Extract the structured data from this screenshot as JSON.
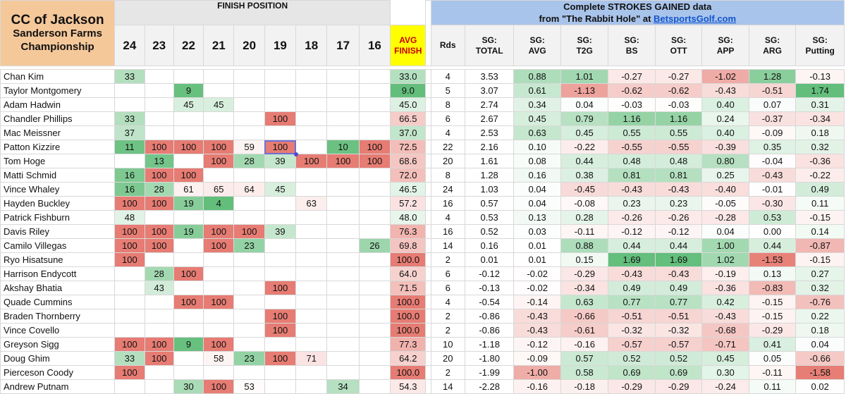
{
  "header": {
    "title_line1": "CC of Jackson",
    "title_line2": "Sanderson Farms",
    "title_line3": "Championship",
    "finish_label": "FINISH POSITION",
    "positions": [
      "24",
      "23",
      "22",
      "21",
      "20",
      "19",
      "18",
      "17",
      "16"
    ],
    "avg_line1": "AVG",
    "avg_line2": "FINISH",
    "sg_line1": "Complete STROKES GAINED data",
    "sg_line2_prefix": "from \"The Rabbit Hole\" at ",
    "sg_link": "BetsportsGolf.com",
    "stat_columns": [
      {
        "l1": "Rds",
        "l2": ""
      },
      {
        "l1": "SG:",
        "l2": "TOTAL"
      },
      {
        "l1": "SG:",
        "l2": "AVG"
      },
      {
        "l1": "SG:",
        "l2": "T2G"
      },
      {
        "l1": "SG:",
        "l2": "BS"
      },
      {
        "l1": "SG:",
        "l2": "OTT"
      },
      {
        "l1": "SG:",
        "l2": "APP"
      },
      {
        "l1": "SG:",
        "l2": "ARG"
      },
      {
        "l1": "SG:",
        "l2": "Putting"
      }
    ]
  },
  "colors": {
    "finish_green_strong": "#63be7b",
    "finish_green_light": "#d7efde",
    "finish_red_strong": "#e67c73",
    "finish_red_light": "#f8dcdc",
    "title_bg": "#f5c89a",
    "avg_header_bg": "#ffff00",
    "sg_header_bg": "#a9c4eb"
  },
  "rows": [
    {
      "name": "Chan Kim",
      "fin": [
        "33",
        "",
        "",
        "",
        "",
        "",
        "",
        "",
        ""
      ],
      "avg": "33.0",
      "rds": "4",
      "total": "3.53",
      "sg": [
        "0.88",
        "1.01",
        "-0.27",
        "-0.27",
        "-1.02",
        "1.28",
        "-0.13"
      ]
    },
    {
      "name": "Taylor Montgomery",
      "fin": [
        "",
        "",
        "9",
        "",
        "",
        "",
        "",
        "",
        ""
      ],
      "avg": "9.0",
      "rds": "5",
      "total": "3.07",
      "sg": [
        "0.61",
        "-1.13",
        "-0.62",
        "-0.62",
        "-0.43",
        "-0.51",
        "1.74"
      ]
    },
    {
      "name": "Adam Hadwin",
      "fin": [
        "",
        "",
        "45",
        "45",
        "",
        "",
        "",
        "",
        ""
      ],
      "avg": "45.0",
      "rds": "8",
      "total": "2.74",
      "sg": [
        "0.34",
        "0.04",
        "-0.03",
        "-0.03",
        "0.40",
        "0.07",
        "0.31"
      ]
    },
    {
      "name": "Chandler Phillips",
      "fin": [
        "33",
        "",
        "",
        "",
        "",
        "100",
        "",
        "",
        ""
      ],
      "avg": "66.5",
      "rds": "6",
      "total": "2.67",
      "sg": [
        "0.45",
        "0.79",
        "1.16",
        "1.16",
        "0.24",
        "-0.37",
        "-0.34"
      ]
    },
    {
      "name": "Mac Meissner",
      "fin": [
        "37",
        "",
        "",
        "",
        "",
        "",
        "",
        "",
        ""
      ],
      "avg": "37.0",
      "rds": "4",
      "total": "2.53",
      "sg": [
        "0.63",
        "0.45",
        "0.55",
        "0.55",
        "0.40",
        "-0.09",
        "0.18"
      ]
    },
    {
      "name": "Patton Kizzire",
      "fin": [
        "11",
        "100",
        "100",
        "100",
        "59",
        "100",
        "",
        "10",
        "100"
      ],
      "avg": "72.5",
      "rds": "22",
      "total": "2.16",
      "sg": [
        "0.10",
        "-0.22",
        "-0.55",
        "-0.55",
        "-0.39",
        "0.35",
        "0.32"
      ]
    },
    {
      "name": "Tom Hoge",
      "fin": [
        "",
        "13",
        "",
        "100",
        "28",
        "39",
        "100",
        "100",
        "100"
      ],
      "avg": "68.6",
      "rds": "20",
      "total": "1.61",
      "sg": [
        "0.08",
        "0.44",
        "0.48",
        "0.48",
        "0.80",
        "-0.04",
        "-0.36"
      ]
    },
    {
      "name": "Matti Schmid",
      "fin": [
        "16",
        "100",
        "100",
        "",
        "",
        "",
        "",
        "",
        ""
      ],
      "avg": "72.0",
      "rds": "8",
      "total": "1.28",
      "sg": [
        "0.16",
        "0.38",
        "0.81",
        "0.81",
        "0.25",
        "-0.43",
        "-0.22"
      ]
    },
    {
      "name": "Vince Whaley",
      "fin": [
        "16",
        "28",
        "61",
        "65",
        "64",
        "45",
        "",
        "",
        ""
      ],
      "avg": "46.5",
      "rds": "24",
      "total": "1.03",
      "sg": [
        "0.04",
        "-0.45",
        "-0.43",
        "-0.43",
        "-0.40",
        "-0.01",
        "0.49"
      ]
    },
    {
      "name": "Hayden Buckley",
      "fin": [
        "100",
        "100",
        "19",
        "4",
        "",
        "",
        "63",
        "",
        ""
      ],
      "avg": "57.2",
      "rds": "16",
      "total": "0.57",
      "sg": [
        "0.04",
        "-0.08",
        "0.23",
        "0.23",
        "-0.05",
        "-0.30",
        "0.11"
      ]
    },
    {
      "name": "Patrick Fishburn",
      "fin": [
        "48",
        "",
        "",
        "",
        "",
        "",
        "",
        "",
        ""
      ],
      "avg": "48.0",
      "rds": "4",
      "total": "0.53",
      "sg": [
        "0.13",
        "0.28",
        "-0.26",
        "-0.26",
        "-0.28",
        "0.53",
        "-0.15"
      ]
    },
    {
      "name": "Davis Riley",
      "fin": [
        "100",
        "100",
        "19",
        "100",
        "100",
        "39",
        "",
        "",
        ""
      ],
      "avg": "76.3",
      "rds": "16",
      "total": "0.52",
      "sg": [
        "0.03",
        "-0.11",
        "-0.12",
        "-0.12",
        "0.04",
        "0.00",
        "0.14"
      ]
    },
    {
      "name": "Camilo Villegas",
      "fin": [
        "100",
        "100",
        "",
        "100",
        "23",
        "",
        "",
        "",
        "26"
      ],
      "avg": "69.8",
      "rds": "14",
      "total": "0.16",
      "sg": [
        "0.01",
        "0.88",
        "0.44",
        "0.44",
        "1.00",
        "0.44",
        "-0.87"
      ]
    },
    {
      "name": "Ryo Hisatsune",
      "fin": [
        "100",
        "",
        "",
        "",
        "",
        "",
        "",
        "",
        ""
      ],
      "avg": "100.0",
      "rds": "2",
      "total": "0.01",
      "sg": [
        "0.01",
        "0.15",
        "1.69",
        "1.69",
        "1.02",
        "-1.53",
        "-0.15"
      ]
    },
    {
      "name": "Harrison Endycott",
      "fin": [
        "",
        "28",
        "100",
        "",
        "",
        "",
        "",
        "",
        ""
      ],
      "avg": "64.0",
      "rds": "6",
      "total": "-0.12",
      "sg": [
        "-0.02",
        "-0.29",
        "-0.43",
        "-0.43",
        "-0.19",
        "0.13",
        "0.27"
      ]
    },
    {
      "name": "Akshay Bhatia",
      "fin": [
        "",
        "43",
        "",
        "",
        "",
        "100",
        "",
        "",
        ""
      ],
      "avg": "71.5",
      "rds": "6",
      "total": "-0.13",
      "sg": [
        "-0.02",
        "-0.34",
        "0.49",
        "0.49",
        "-0.36",
        "-0.83",
        "0.32"
      ]
    },
    {
      "name": "Quade Cummins",
      "fin": [
        "",
        "",
        "100",
        "100",
        "",
        "",
        "",
        "",
        ""
      ],
      "avg": "100.0",
      "rds": "4",
      "total": "-0.54",
      "sg": [
        "-0.14",
        "0.63",
        "0.77",
        "0.77",
        "0.42",
        "-0.15",
        "-0.76"
      ]
    },
    {
      "name": "Braden Thornberry",
      "fin": [
        "",
        "",
        "",
        "",
        "",
        "100",
        "",
        "",
        ""
      ],
      "avg": "100.0",
      "rds": "2",
      "total": "-0.86",
      "sg": [
        "-0.43",
        "-0.66",
        "-0.51",
        "-0.51",
        "-0.43",
        "-0.15",
        "0.22"
      ]
    },
    {
      "name": "Vince Covello",
      "fin": [
        "",
        "",
        "",
        "",
        "",
        "100",
        "",
        "",
        ""
      ],
      "avg": "100.0",
      "rds": "2",
      "total": "-0.86",
      "sg": [
        "-0.43",
        "-0.61",
        "-0.32",
        "-0.32",
        "-0.68",
        "-0.29",
        "0.18"
      ]
    },
    {
      "name": "Greyson Sigg",
      "fin": [
        "100",
        "100",
        "9",
        "100",
        "",
        "",
        "",
        "",
        ""
      ],
      "avg": "77.3",
      "rds": "10",
      "total": "-1.18",
      "sg": [
        "-0.12",
        "-0.16",
        "-0.57",
        "-0.57",
        "-0.71",
        "0.41",
        "0.04"
      ]
    },
    {
      "name": "Doug Ghim",
      "fin": [
        "33",
        "100",
        "",
        "58",
        "23",
        "100",
        "71",
        "",
        ""
      ],
      "avg": "64.2",
      "rds": "20",
      "total": "-1.80",
      "sg": [
        "-0.09",
        "0.57",
        "0.52",
        "0.52",
        "0.45",
        "0.05",
        "-0.66"
      ]
    },
    {
      "name": "Pierceson Coody",
      "fin": [
        "100",
        "",
        "",
        "",
        "",
        "",
        "",
        "",
        ""
      ],
      "avg": "100.0",
      "rds": "2",
      "total": "-1.99",
      "sg": [
        "-1.00",
        "0.58",
        "0.69",
        "0.69",
        "0.30",
        "-0.11",
        "-1.58"
      ]
    },
    {
      "name": "Andrew Putnam",
      "fin": [
        "",
        "",
        "30",
        "100",
        "53",
        "",
        "",
        "34",
        ""
      ],
      "avg": "54.3",
      "rds": "14",
      "total": "-2.28",
      "sg": [
        "-0.16",
        "-0.18",
        "-0.29",
        "-0.29",
        "-0.24",
        "0.11",
        "0.02"
      ]
    }
  ]
}
